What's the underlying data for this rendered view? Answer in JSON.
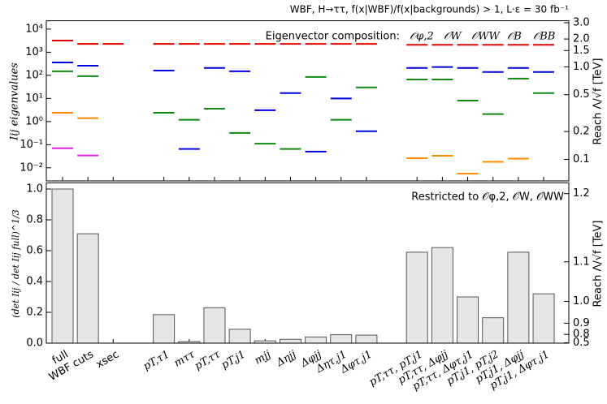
{
  "chart_data": [
    {
      "type": "segment",
      "title": "WBF, H→ττ, f(x|WBF)/f(x|backgrounds) > 1, L·ε = 30 fb⁻¹",
      "ylabel": "Iij eigenvalues",
      "y2label": "Reach Λ/√f [TeV]",
      "legend_title": "Eigenvector composition:",
      "yscale": "log",
      "ylim": [
        0.0027,
        23000
      ],
      "yticks": [
        {
          "value": 0.01,
          "label": "10⁻²"
        },
        {
          "value": 0.1,
          "label": "10⁻¹"
        },
        {
          "value": 1,
          "label": "10⁰"
        },
        {
          "value": 10,
          "label": "10¹"
        },
        {
          "value": 100,
          "label": "10²"
        },
        {
          "value": 1000,
          "label": "10³"
        },
        {
          "value": 10000,
          "label": "10⁴"
        }
      ],
      "y2scale": "log",
      "y2lim": [
        0.0585,
        3.15
      ],
      "y2ticks": [
        0.1,
        0.2,
        0.5,
        {
          "value": 1,
          "label": "1.0"
        },
        1.5,
        {
          "value": 2,
          "label": "2.0"
        },
        {
          "value": 3,
          "label": "3.0"
        }
      ],
      "series": [
        {
          "name": "𝒪φ,2",
          "color": "#e00000",
          "values": [
            3200,
            2300,
            2300,
            null,
            2300,
            2300,
            2300,
            2300,
            2300,
            2300,
            2300,
            2300,
            2300,
            null,
            2100,
            2100,
            2100,
            2100,
            2100,
            2100
          ]
        },
        {
          "name": "𝒪W",
          "color": "#0000e0",
          "values": [
            360,
            260,
            null,
            null,
            160,
            0.065,
            210,
            150,
            3.1,
            17,
            0.05,
            10,
            0.38,
            null,
            210,
            230,
            210,
            140,
            210,
            140
          ]
        },
        {
          "name": "𝒪WW",
          "color": "#118811",
          "values": [
            150,
            92,
            null,
            null,
            2.4,
            1.2,
            3.6,
            0.32,
            0.11,
            0.065,
            85,
            1.2,
            30,
            null,
            66,
            66,
            8.1,
            2.1,
            72,
            17
          ]
        },
        {
          "name": "𝒪B",
          "color": "#ff8c00",
          "values": [
            2.4,
            1.4,
            null,
            null,
            null,
            null,
            null,
            null,
            null,
            null,
            null,
            null,
            null,
            null,
            0.026,
            0.033,
            0.0056,
            0.018,
            0.025,
            null
          ]
        },
        {
          "name": "𝒪BB",
          "color": "#e020e0",
          "values": [
            0.07,
            0.034,
            null,
            null,
            null,
            null,
            null,
            null,
            null,
            null,
            null,
            null,
            null,
            null,
            null,
            null,
            null,
            null,
            null,
            null
          ]
        }
      ]
    },
    {
      "type": "bar",
      "ylabel": "(det Iij / det Iij full)^1/3",
      "y2label": "Reach Λ/√f [TeV]",
      "annotation": "Restricted to 𝒪φ,2, 𝒪W, 𝒪WW",
      "categories": [
        "full",
        "WBF cuts",
        "xsec",
        null,
        "pT,τ1",
        "mττ",
        "pT,ττ",
        "pT,j1",
        "mjj",
        "Δηjj",
        "Δφjj",
        "Δητ,j1",
        "Δφτ,j1",
        null,
        "pT,ττ, pT,j1",
        "pT,ττ, Δφjj",
        "pT,ττ, Δφτ,j1",
        "pT,j1, pT,j2",
        "pT,j1, Δφjj",
        "pT,j1, Δφτ,j1"
      ],
      "values": [
        1.0,
        0.71,
        0,
        null,
        0.185,
        0.01,
        0.23,
        0.09,
        0.015,
        0.025,
        0.04,
        0.055,
        0.052,
        null,
        0.59,
        0.62,
        0.3,
        0.165,
        0.59,
        0.32
      ],
      "color": "#e6e6e6",
      "ylim": [
        0,
        1.04
      ],
      "yticks": [
        {
          "value": 0,
          "label": "0.0"
        },
        0.2,
        0.4,
        0.6,
        0.8,
        {
          "value": 1,
          "label": "1.0"
        }
      ],
      "y2scale": "power",
      "y2power": 7,
      "y2lim": [
        0,
        1.212
      ],
      "y2ticks": [
        0.5,
        0.8,
        0.9,
        {
          "value": 1,
          "label": "1.0"
        },
        1.1,
        1.2
      ]
    }
  ]
}
